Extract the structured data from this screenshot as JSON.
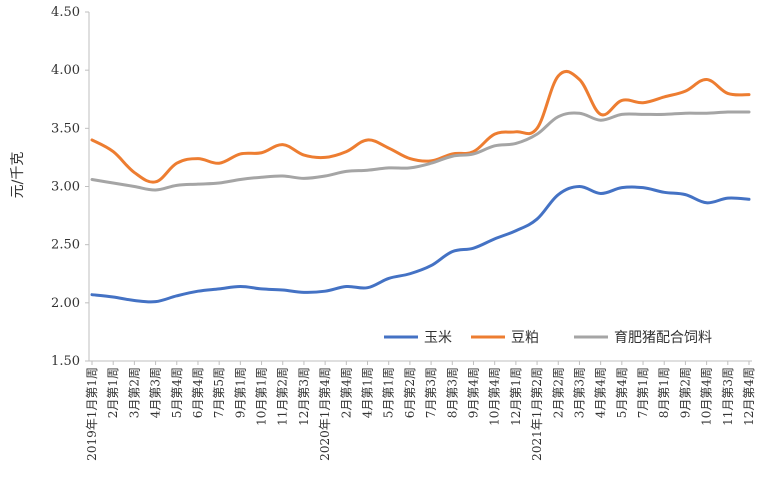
{
  "chart_data": {
    "type": "line",
    "title": "",
    "xlabel": "",
    "ylabel": "元/千克",
    "ylim": [
      1.5,
      4.5
    ],
    "yticks": [
      "4.50",
      "4.00",
      "3.50",
      "3.00",
      "2.50",
      "2.00",
      "1.50"
    ],
    "grid": false,
    "legend_position": "bottom-right",
    "categories": [
      "2019年1月第1周",
      "2月第1周",
      "3月第2周",
      "4月第3周",
      "5月第4周",
      "6月第4周",
      "7月第5周",
      "9月第1周",
      "10月第1周",
      "11月第2周",
      "12月第3周",
      "2020年1月第4周",
      "2月第4周",
      "4月第1周",
      "5月第1周",
      "6月第2周",
      "7月第3周",
      "8月第3周",
      "9月第4周",
      "10月第4周",
      "12月第1周",
      "2021年1月第2周",
      "2月第2周",
      "3月第3周",
      "4月第4周",
      "5月第4周",
      "7月第1周",
      "8月第1周",
      "9月第2周",
      "10月第4周",
      "11月第3周",
      "12月第4周"
    ],
    "series": [
      {
        "name": "玉米",
        "color": "#4472C4",
        "values": [
          2.07,
          2.05,
          2.02,
          2.01,
          2.06,
          2.1,
          2.12,
          2.14,
          2.12,
          2.11,
          2.09,
          2.1,
          2.14,
          2.13,
          2.21,
          2.25,
          2.32,
          2.44,
          2.47,
          2.55,
          2.62,
          2.72,
          2.93,
          3.0,
          2.94,
          2.99,
          2.99,
          2.95,
          2.93,
          2.86,
          2.9,
          2.89
        ]
      },
      {
        "name": "豆粕",
        "color": "#ED7D31",
        "values": [
          3.4,
          3.3,
          3.12,
          3.04,
          3.2,
          3.24,
          3.2,
          3.28,
          3.29,
          3.36,
          3.27,
          3.25,
          3.3,
          3.4,
          3.33,
          3.24,
          3.22,
          3.28,
          3.3,
          3.45,
          3.47,
          3.5,
          3.95,
          3.92,
          3.62,
          3.74,
          3.72,
          3.77,
          3.82,
          3.92,
          3.8,
          3.79
        ]
      },
      {
        "name": "育肥猪配合饲料",
        "color": "#A5A5A5",
        "values": [
          3.06,
          3.03,
          3.0,
          2.97,
          3.01,
          3.02,
          3.03,
          3.06,
          3.08,
          3.09,
          3.07,
          3.09,
          3.13,
          3.14,
          3.16,
          3.16,
          3.2,
          3.26,
          3.28,
          3.35,
          3.37,
          3.45,
          3.6,
          3.63,
          3.57,
          3.62,
          3.62,
          3.62,
          3.63,
          3.63,
          3.64,
          3.64
        ]
      }
    ]
  }
}
